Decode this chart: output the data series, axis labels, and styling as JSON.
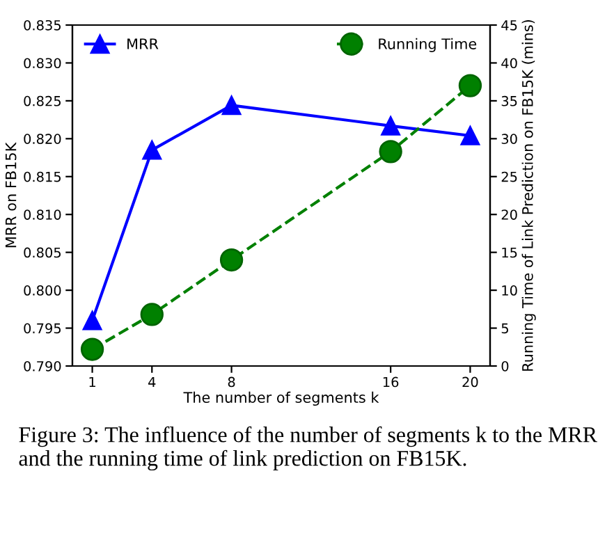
{
  "chart_data": {
    "type": "line",
    "xlabel": "The number of segments k",
    "ylabel": "MRR on FB15K",
    "y2label": "Running Time of Link Prediction on FB15K (mins)",
    "x": [
      1,
      4,
      8,
      16,
      20
    ],
    "series": [
      {
        "name": "MRR",
        "color": "#0000ff",
        "marker": "triangle",
        "line_style": "solid",
        "values": [
          0.796,
          0.8185,
          0.8244,
          0.8217,
          0.8204
        ]
      },
      {
        "name": "Running Time",
        "color": "#008000",
        "marker": "circle",
        "line_style": "dashed",
        "axis": "y2",
        "values": [
          2.2,
          6.8,
          14.0,
          28.3,
          37.0
        ]
      }
    ],
    "xlim": [
      0,
      21
    ],
    "xticks": [
      1,
      4,
      8,
      16,
      20
    ],
    "ylim": [
      0.79,
      0.835
    ],
    "yticks": [
      {
        "value": 0.79,
        "label": "0.790"
      },
      {
        "value": 0.795,
        "label": "0.795"
      },
      {
        "value": 0.8,
        "label": "0.800"
      },
      {
        "value": 0.805,
        "label": "0.805"
      },
      {
        "value": 0.81,
        "label": "0.810"
      },
      {
        "value": 0.815,
        "label": "0.815"
      },
      {
        "value": 0.82,
        "label": "0.820"
      },
      {
        "value": 0.825,
        "label": "0.825"
      },
      {
        "value": 0.83,
        "label": "0.830"
      },
      {
        "value": 0.835,
        "label": "0.835"
      }
    ],
    "y2lim": [
      0,
      45
    ],
    "y2ticks": [
      0,
      5,
      10,
      15,
      20,
      25,
      30,
      35,
      40,
      45
    ],
    "legend": "top",
    "grid": false,
    "annotations": [
      "Figure 3: The influence of the number of segments k to the MRR and the running time of link prediction on FB15K."
    ]
  }
}
